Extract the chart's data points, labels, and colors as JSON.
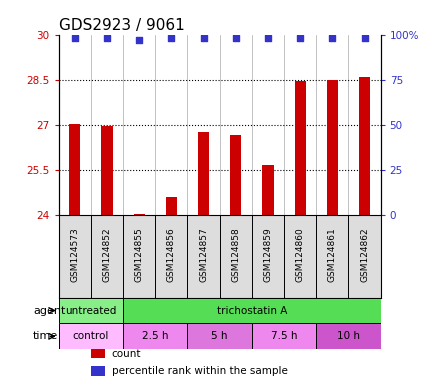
{
  "title": "GDS2923 / 9061",
  "samples": [
    "GSM124573",
    "GSM124852",
    "GSM124855",
    "GSM124856",
    "GSM124857",
    "GSM124858",
    "GSM124859",
    "GSM124860",
    "GSM124861",
    "GSM124862"
  ],
  "bar_values": [
    27.02,
    26.95,
    24.05,
    24.6,
    26.75,
    26.65,
    25.65,
    28.45,
    28.5,
    28.6
  ],
  "percentile_values": [
    98,
    98,
    97,
    98,
    98,
    98,
    98,
    98,
    98,
    98
  ],
  "bar_color": "#cc0000",
  "dot_color": "#3333cc",
  "ylim_left": [
    24,
    30
  ],
  "ylim_right": [
    0,
    100
  ],
  "yticks_left": [
    24,
    25.5,
    27,
    28.5,
    30
  ],
  "yticks_right": [
    0,
    25,
    50,
    75,
    100
  ],
  "ytick_labels_right": [
    "0",
    "25",
    "50",
    "75",
    "100%"
  ],
  "agent_row": [
    {
      "label": "untreated",
      "span": [
        0,
        2
      ],
      "color": "#88ee88"
    },
    {
      "label": "trichostatin A",
      "span": [
        2,
        10
      ],
      "color": "#55dd55"
    }
  ],
  "time_row": [
    {
      "label": "control",
      "span": [
        0,
        2
      ],
      "color": "#ffbbff"
    },
    {
      "label": "2.5 h",
      "span": [
        2,
        4
      ],
      "color": "#ee88ee"
    },
    {
      "label": "5 h",
      "span": [
        4,
        6
      ],
      "color": "#dd77dd"
    },
    {
      "label": "7.5 h",
      "span": [
        6,
        8
      ],
      "color": "#ee88ee"
    },
    {
      "label": "10 h",
      "span": [
        8,
        10
      ],
      "color": "#cc55cc"
    }
  ],
  "legend_items": [
    {
      "color": "#cc0000",
      "label": "count"
    },
    {
      "color": "#3333cc",
      "label": "percentile rank within the sample"
    }
  ],
  "agent_label": "agent",
  "time_label": "time",
  "background_color": "#ffffff",
  "axis_label_color_left": "#cc0000",
  "axis_label_color_right": "#3333cc",
  "title_fontsize": 11,
  "bar_width": 0.35
}
